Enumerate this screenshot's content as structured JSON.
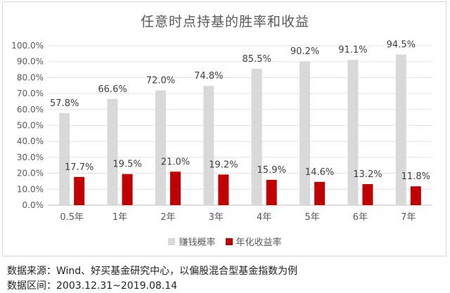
{
  "chart_data": {
    "type": "bar",
    "title": "任意时点持基的胜率和收益",
    "categories": [
      "0.5年",
      "1年",
      "2年",
      "3年",
      "4年",
      "5年",
      "6年",
      "7年"
    ],
    "series": [
      {
        "name": "赚钱概率",
        "color": "#d9d9d9",
        "values": [
          57.8,
          66.6,
          72.0,
          74.8,
          85.5,
          90.2,
          91.1,
          94.5
        ],
        "labels": [
          "57.8%",
          "66.6%",
          "72.0%",
          "74.8%",
          "85.5%",
          "90.2%",
          "91.1%",
          "94.5%"
        ]
      },
      {
        "name": "年化收益率",
        "color": "#c00000",
        "values": [
          17.7,
          19.5,
          21.0,
          19.2,
          15.9,
          14.6,
          13.2,
          11.8
        ],
        "labels": [
          "17.7%",
          "19.5%",
          "21.0%",
          "19.2%",
          "15.9%",
          "14.6%",
          "13.2%",
          "11.8%"
        ]
      }
    ],
    "ylim": [
      0,
      100
    ],
    "yticks": [
      "0.0%",
      "10.0%",
      "20.0%",
      "30.0%",
      "40.0%",
      "50.0%",
      "60.0%",
      "70.0%",
      "80.0%",
      "90.0%",
      "100.0%"
    ],
    "grid": true,
    "legend_position": "bottom"
  },
  "legend": {
    "series1": "赚钱概率",
    "series2": "年化收益率"
  },
  "caption": {
    "source": "数据来源：Wind、好买基金研究中心，以偏股混合型基金指数为例",
    "period": "数据区间：2003.12.31~2019.08.14"
  }
}
